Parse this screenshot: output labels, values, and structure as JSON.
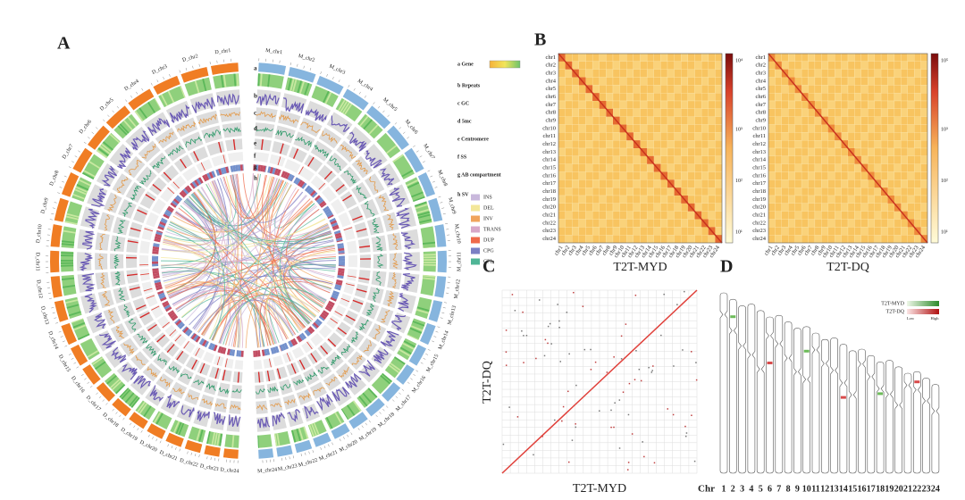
{
  "panel_labels": [
    "A",
    "B",
    "C",
    "D"
  ],
  "circos": {
    "track_letters": [
      "a",
      "b",
      "c",
      "d",
      "e",
      "f",
      "g",
      "h"
    ],
    "legend": [
      "a Gene",
      "b Repeats",
      "c GC",
      "d 5mc",
      "e Centromere",
      "f SS",
      "g AB compartment",
      "h SV"
    ],
    "sv_types": [
      {
        "name": "INS",
        "color": "#c9b8dc"
      },
      {
        "name": "DEL",
        "color": "#f3e79a"
      },
      {
        "name": "INV",
        "color": "#f0a45c"
      },
      {
        "name": "TRANS",
        "color": "#d8a8c8"
      },
      {
        "name": "DUP",
        "color": "#ef6a4a"
      },
      {
        "name": "CPG",
        "color": "#7b7fc4"
      },
      {
        "name": "CPL",
        "color": "#4fb596"
      }
    ],
    "m_color": "#86b5de",
    "d_color": "#f07d24",
    "chromosomes_m": [
      "M_chr1",
      "M_chr2",
      "M_chr3",
      "M_chr4",
      "M_chr5",
      "M_chr6",
      "M_chr7",
      "M_chr8",
      "M_chr9",
      "M_chr10",
      "M_chr11",
      "M_chr12",
      "M_chr13",
      "M_chr14",
      "M_chr15",
      "M_chr16",
      "M_chr17",
      "M_chr18",
      "M_chr19",
      "M_chr20",
      "M_chr21",
      "M_chr22",
      "M_chr23",
      "M_chr24"
    ],
    "chromosomes_d": [
      "D_chr1",
      "D_chr2",
      "D_chr3",
      "D_chr4",
      "D_chr5",
      "D_chr6",
      "D_chr7",
      "D_chr8",
      "D_chr9",
      "D_chr10",
      "D_chr11",
      "D_chr12",
      "D_chr13",
      "D_chr14",
      "D_chr15",
      "D_chr16",
      "D_chr17",
      "D_chr18",
      "D_chr19",
      "D_chr20",
      "D_chr21",
      "D_chr22",
      "D_chr23",
      "D_chr24"
    ]
  },
  "heatmaps": {
    "chr_labels": [
      "chr1",
      "chr2",
      "chr3",
      "chr4",
      "chr5",
      "chr6",
      "chr7",
      "chr8",
      "chr9",
      "chr10",
      "chr11",
      "chr12",
      "chr13",
      "chr14",
      "chr15",
      "chr16",
      "chr17",
      "chr18",
      "chr19",
      "chr20",
      "chr21",
      "chr22",
      "chr23",
      "chr24"
    ],
    "maps": [
      {
        "title": "T2T-MYD",
        "colorbar": [
          "10⁴",
          "10³",
          "10²",
          "10¹"
        ]
      },
      {
        "title": "T2T-DQ",
        "colorbar": [
          "10⁵",
          "10³",
          "10²",
          "10¹"
        ]
      }
    ]
  },
  "dotplot": {
    "x_label": "T2T-MYD",
    "y_label": "T2T-DQ"
  },
  "karyotype": {
    "legend": [
      "T2T-MYD",
      "T2T-DQ"
    ],
    "low": "Low",
    "high": "High",
    "axis_label": "Chr",
    "chromosomes": [
      "1",
      "2",
      "3",
      "4",
      "5",
      "6",
      "7",
      "8",
      "9",
      "10",
      "11",
      "12",
      "13",
      "14",
      "15",
      "16",
      "17",
      "18",
      "19",
      "20",
      "21",
      "22",
      "23",
      "24"
    ]
  }
}
